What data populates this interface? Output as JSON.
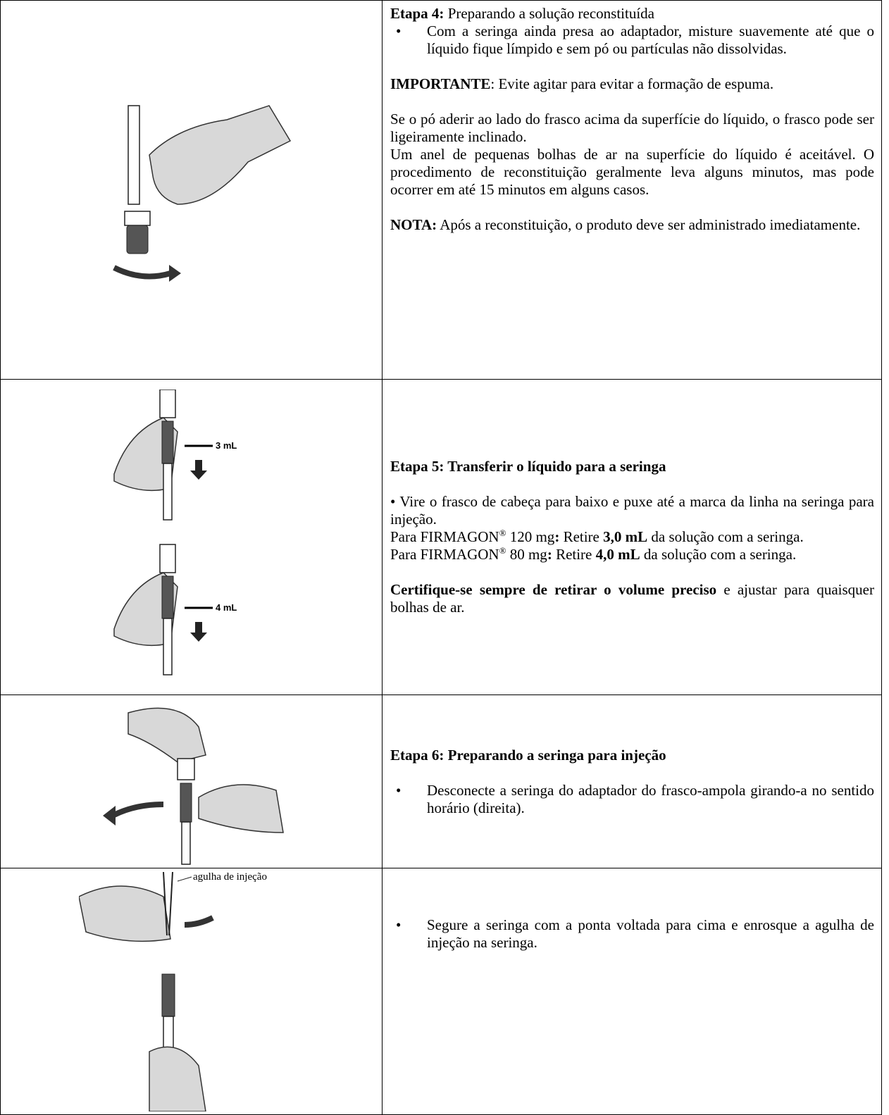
{
  "rows": [
    {
      "blocks": [
        [
          {
            "runs": [
              {
                "bold": "Etapa 4:"
              },
              " Preparando a solução reconstituída"
            ]
          },
          {
            "item": [
              "Com a seringa ainda presa ao adaptador, misture suavemente até que o líquido fique límpido e sem pó ou partículas não dissolvidas."
            ]
          }
        ],
        [
          {
            "runs": [
              {
                "bold": "IMPORTANTE"
              },
              ": Evite agitar para evitar a formação de espuma."
            ]
          }
        ],
        [
          {
            "runs": [
              "Se o pó aderir ao lado do frasco acima da superfície do líquido, o frasco pode ser ligeiramente inclinado."
            ]
          },
          {
            "runs": [
              "Um anel de pequenas bolhas de ar na superfície do líquido é aceitável. O procedimento de reconstituição geralmente leva alguns minutos, mas pode ocorrer em até 15 minutos em alguns casos."
            ]
          }
        ],
        [
          {
            "runs": [
              {
                "bold": "NOTA:"
              },
              " Após a reconstituição, o produto deve ser administrado imediatamente."
            ]
          }
        ]
      ]
    },
    {
      "image_labels": [
        "3 mL",
        "4 mL"
      ],
      "blocks": [
        [
          {
            "runs": [
              {
                "bold": "Etapa 5: Transferir o líquido para a seringa"
              }
            ]
          }
        ],
        [
          {
            "runs": [
              "• Vire o frasco de cabeça para baixo e puxe até a marca da linha na seringa para injeção."
            ]
          },
          {
            "runs": [
              "Para FIRMAGON",
              {
                "sup": "®"
              },
              " 120 mg",
              {
                "bold": ":"
              },
              " Retire ",
              {
                "bold": "3,0 mL"
              },
              " da solução com a seringa."
            ]
          },
          {
            "runs": [
              "Para FIRMAGON",
              {
                "sup": "®"
              },
              " 80 mg",
              {
                "bold": ":"
              },
              " Retire ",
              {
                "bold": "4,0 mL"
              },
              " da solução com a seringa."
            ]
          }
        ],
        [
          {
            "runs": [
              {
                "bold": "Certifique-se sempre de retirar o volume preciso"
              },
              " e ajustar para quaisquer bolhas de ar."
            ]
          }
        ]
      ]
    },
    {
      "blocks": [
        [
          {
            "runs": [
              {
                "bold": "Etapa 6: Preparando a seringa para injeção"
              }
            ]
          }
        ],
        [
          {
            "item": [
              "Desconecte a seringa do adaptador do frasco-ampola girando-a no sentido horário (direita)."
            ]
          }
        ]
      ]
    },
    {
      "image_labels": [
        "agulha de injeção"
      ],
      "blocks": [
        [
          {
            "item": [
              "Segure a seringa com a ponta voltada para cima e enrosque a agulha de injeção na seringa."
            ]
          }
        ]
      ]
    }
  ]
}
